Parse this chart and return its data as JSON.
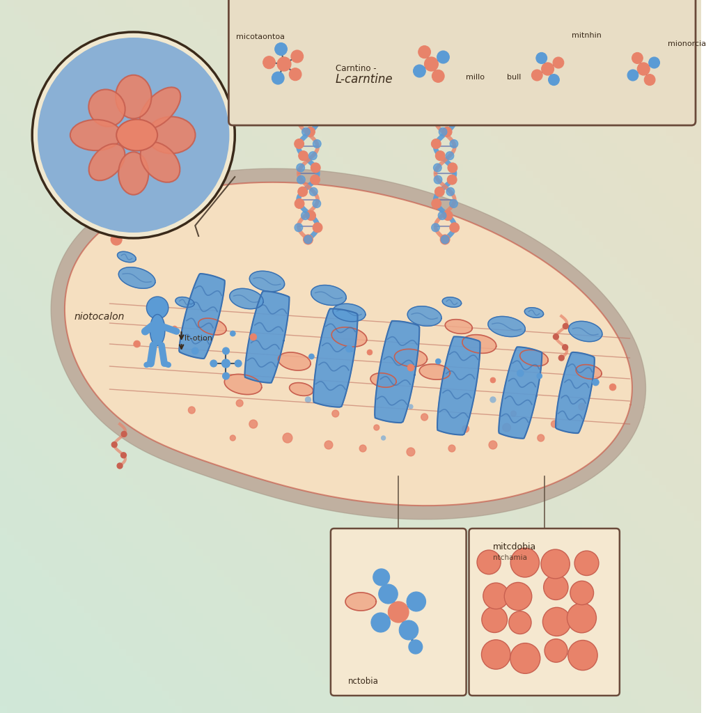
{
  "bg_color_top": "#d8e8d0",
  "bg_color_bottom": "#e8e0c8",
  "cell_fill": "#f5dfc0",
  "cell_border_outer": "#c8b098",
  "cell_border_inner": "#e0a080",
  "blue": "#5b9bd5",
  "blue_dark": "#3a70b0",
  "blue_light": "#85bce0",
  "salmon": "#e8836a",
  "salmon_dark": "#c86050",
  "salmon_light": "#f0a888",
  "gray_border": "#9a9090",
  "text_dark": "#3a2a1a",
  "box_bg": "#e8ddc5",
  "box_border": "#6a4a3a",
  "inset_bg": "#f5e8d0",
  "line_color": "#c07060",
  "top_labels": [
    "micotaontoa",
    "Carntino -",
    "mitnhin",
    "millo",
    "bull",
    "mionorcia"
  ],
  "main_label": "L-carntine",
  "side_label": "niotocalon",
  "bottom_left_label": "nctobia",
  "bottom_right_label": "mitcdobia",
  "bottom_right_sub": "ntchamia"
}
